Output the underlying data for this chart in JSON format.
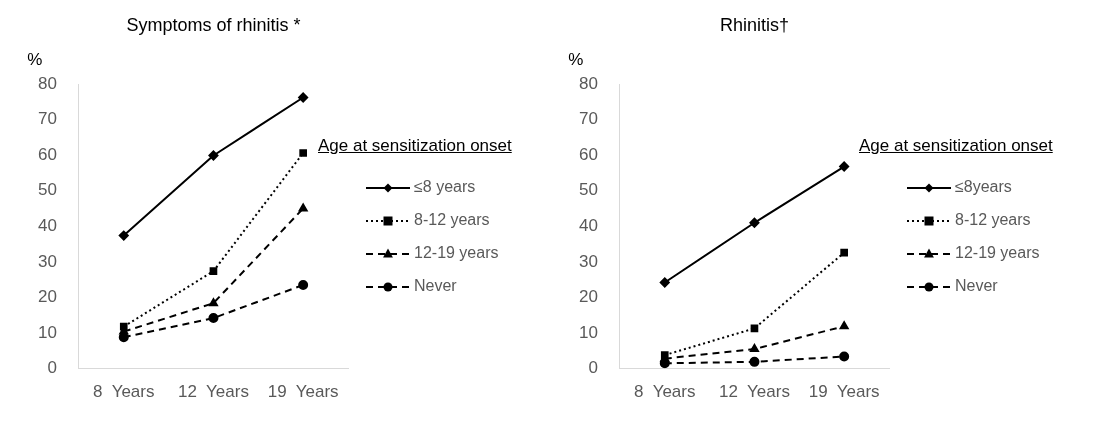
{
  "chart_data": [
    {
      "type": "line",
      "title": "Symptoms of rhinitis *",
      "ylabel": "%",
      "legend_title": "Age at sensitization onset",
      "legend": "right",
      "grid": false,
      "categories": [
        "8  Years",
        "12  Years",
        "19  Years"
      ],
      "ylim": [
        0,
        80
      ],
      "yticks": [
        0,
        10,
        20,
        30,
        40,
        50,
        60,
        70,
        80
      ],
      "series": [
        {
          "name": "≤8 years",
          "color": "#000000",
          "marker": "diamond",
          "line_style": "solid",
          "values": [
            37.4,
            59.9,
            76.2
          ]
        },
        {
          "name": "8-12 years",
          "color": "#000000",
          "marker": "square",
          "line_style": "dotted",
          "values": [
            11.8,
            27.4,
            60.6
          ]
        },
        {
          "name": "12-19 years",
          "color": "#000000",
          "marker": "triangle",
          "line_style": "dashed",
          "values": [
            10.4,
            18.4,
            45.0
          ]
        },
        {
          "name": "Never",
          "color": "#000000",
          "marker": "circle",
          "line_style": "dashed",
          "values": [
            8.8,
            14.2,
            23.5
          ]
        }
      ]
    },
    {
      "type": "line",
      "title": "Rhinitis†",
      "ylabel": "%",
      "legend_title": "Age at sensitization onset",
      "legend": "right",
      "grid": false,
      "categories": [
        "8  Years",
        "12  Years",
        "19  Years"
      ],
      "ylim": [
        0,
        80
      ],
      "yticks": [
        0,
        10,
        20,
        30,
        40,
        50,
        60,
        70,
        80
      ],
      "series": [
        {
          "name": "≤8years",
          "color": "#000000",
          "marker": "diamond",
          "line_style": "solid",
          "values": [
            24.2,
            41.0,
            56.8
          ]
        },
        {
          "name": "8-12 years",
          "color": "#000000",
          "marker": "square",
          "line_style": "dotted",
          "values": [
            3.8,
            11.3,
            32.6
          ]
        },
        {
          "name": "12-19 years",
          "color": "#000000",
          "marker": "triangle",
          "line_style": "dashed",
          "values": [
            2.8,
            5.5,
            11.9
          ]
        },
        {
          "name": "Never",
          "color": "#000000",
          "marker": "circle",
          "line_style": "dashed",
          "values": [
            1.5,
            1.9,
            3.4
          ]
        }
      ]
    }
  ]
}
